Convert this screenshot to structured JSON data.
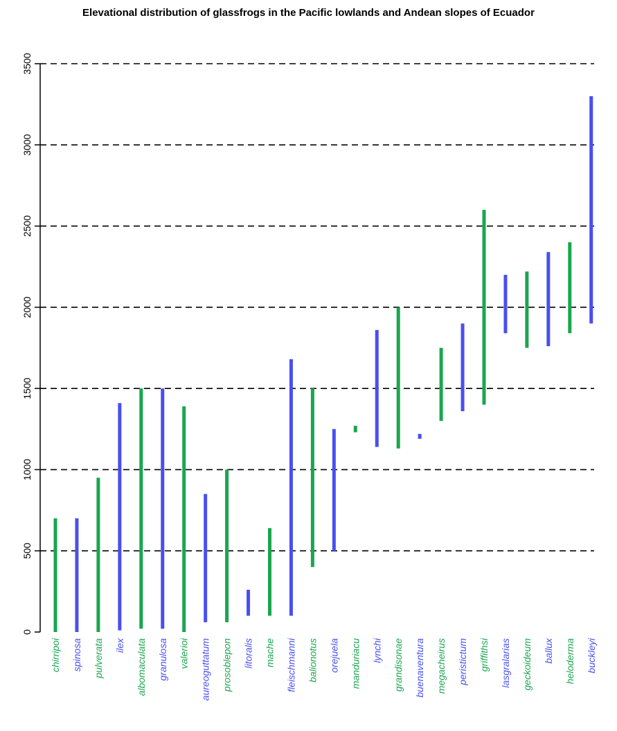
{
  "chart_data": {
    "type": "bar",
    "title": "Elevational distribution of glassfrogs in the Pacific lowlands and Andean slopes of Ecuador",
    "xlabel": "",
    "ylabel": "",
    "ylim": [
      0,
      3500
    ],
    "yticks": [
      0,
      500,
      1000,
      1500,
      2000,
      2500,
      3000,
      3500
    ],
    "grid": "horizontal dashed",
    "legend": "none",
    "colors": {
      "green": "#1aa64f",
      "blue": "#4a4ff0"
    },
    "categories": [
      "chirripoi",
      "spinosa",
      "pulverata",
      "ilex",
      "albomaculata",
      "granulosa",
      "valerioi",
      "aureoguttatum",
      "prosoblepon",
      "litoralis",
      "mache",
      "fleischmanni",
      "balionotus",
      "orejuela",
      "manduriacu",
      "lynchi",
      "grandisonae",
      "buenaventura",
      "megacheirus",
      "peristictum",
      "griffithsi",
      "lasgralarias",
      "geckoideum",
      "ballux",
      "heloderma",
      "buckleyi"
    ],
    "ranges": [
      {
        "name": "chirripoi",
        "min": 0,
        "max": 700,
        "color": "green"
      },
      {
        "name": "spinosa",
        "min": 0,
        "max": 700,
        "color": "blue"
      },
      {
        "name": "pulverata",
        "min": 0,
        "max": 950,
        "color": "green"
      },
      {
        "name": "ilex",
        "min": 10,
        "max": 1410,
        "color": "blue"
      },
      {
        "name": "albomaculata",
        "min": 20,
        "max": 1500,
        "color": "green"
      },
      {
        "name": "granulosa",
        "min": 20,
        "max": 1500,
        "color": "blue"
      },
      {
        "name": "valerioi",
        "min": 0,
        "max": 1390,
        "color": "green"
      },
      {
        "name": "aureoguttatum",
        "min": 60,
        "max": 850,
        "color": "blue"
      },
      {
        "name": "prosoblepon",
        "min": 60,
        "max": 1000,
        "color": "green"
      },
      {
        "name": "litoralis",
        "min": 100,
        "max": 260,
        "color": "blue"
      },
      {
        "name": "mache",
        "min": 100,
        "max": 640,
        "color": "green"
      },
      {
        "name": "fleischmanni",
        "min": 100,
        "max": 1680,
        "color": "blue"
      },
      {
        "name": "balionotus",
        "min": 400,
        "max": 1500,
        "color": "green"
      },
      {
        "name": "orejuela",
        "min": 500,
        "max": 1250,
        "color": "blue"
      },
      {
        "name": "manduriacu",
        "min": 1230,
        "max": 1270,
        "color": "green"
      },
      {
        "name": "lynchi",
        "min": 1140,
        "max": 1860,
        "color": "blue"
      },
      {
        "name": "grandisonae",
        "min": 1130,
        "max": 2000,
        "color": "green"
      },
      {
        "name": "buenaventura",
        "min": 1190,
        "max": 1220,
        "color": "blue"
      },
      {
        "name": "megacheirus",
        "min": 1300,
        "max": 1750,
        "color": "green"
      },
      {
        "name": "peristictum",
        "min": 1360,
        "max": 1900,
        "color": "blue"
      },
      {
        "name": "griffithsi",
        "min": 1400,
        "max": 2600,
        "color": "green"
      },
      {
        "name": "lasgralarias",
        "min": 1840,
        "max": 2200,
        "color": "blue"
      },
      {
        "name": "geckoideum",
        "min": 1750,
        "max": 2220,
        "color": "green"
      },
      {
        "name": "ballux",
        "min": 1760,
        "max": 2340,
        "color": "blue"
      },
      {
        "name": "heloderma",
        "min": 1840,
        "max": 2400,
        "color": "green"
      },
      {
        "name": "buckleyi",
        "min": 1900,
        "max": 3300,
        "color": "blue"
      }
    ]
  }
}
